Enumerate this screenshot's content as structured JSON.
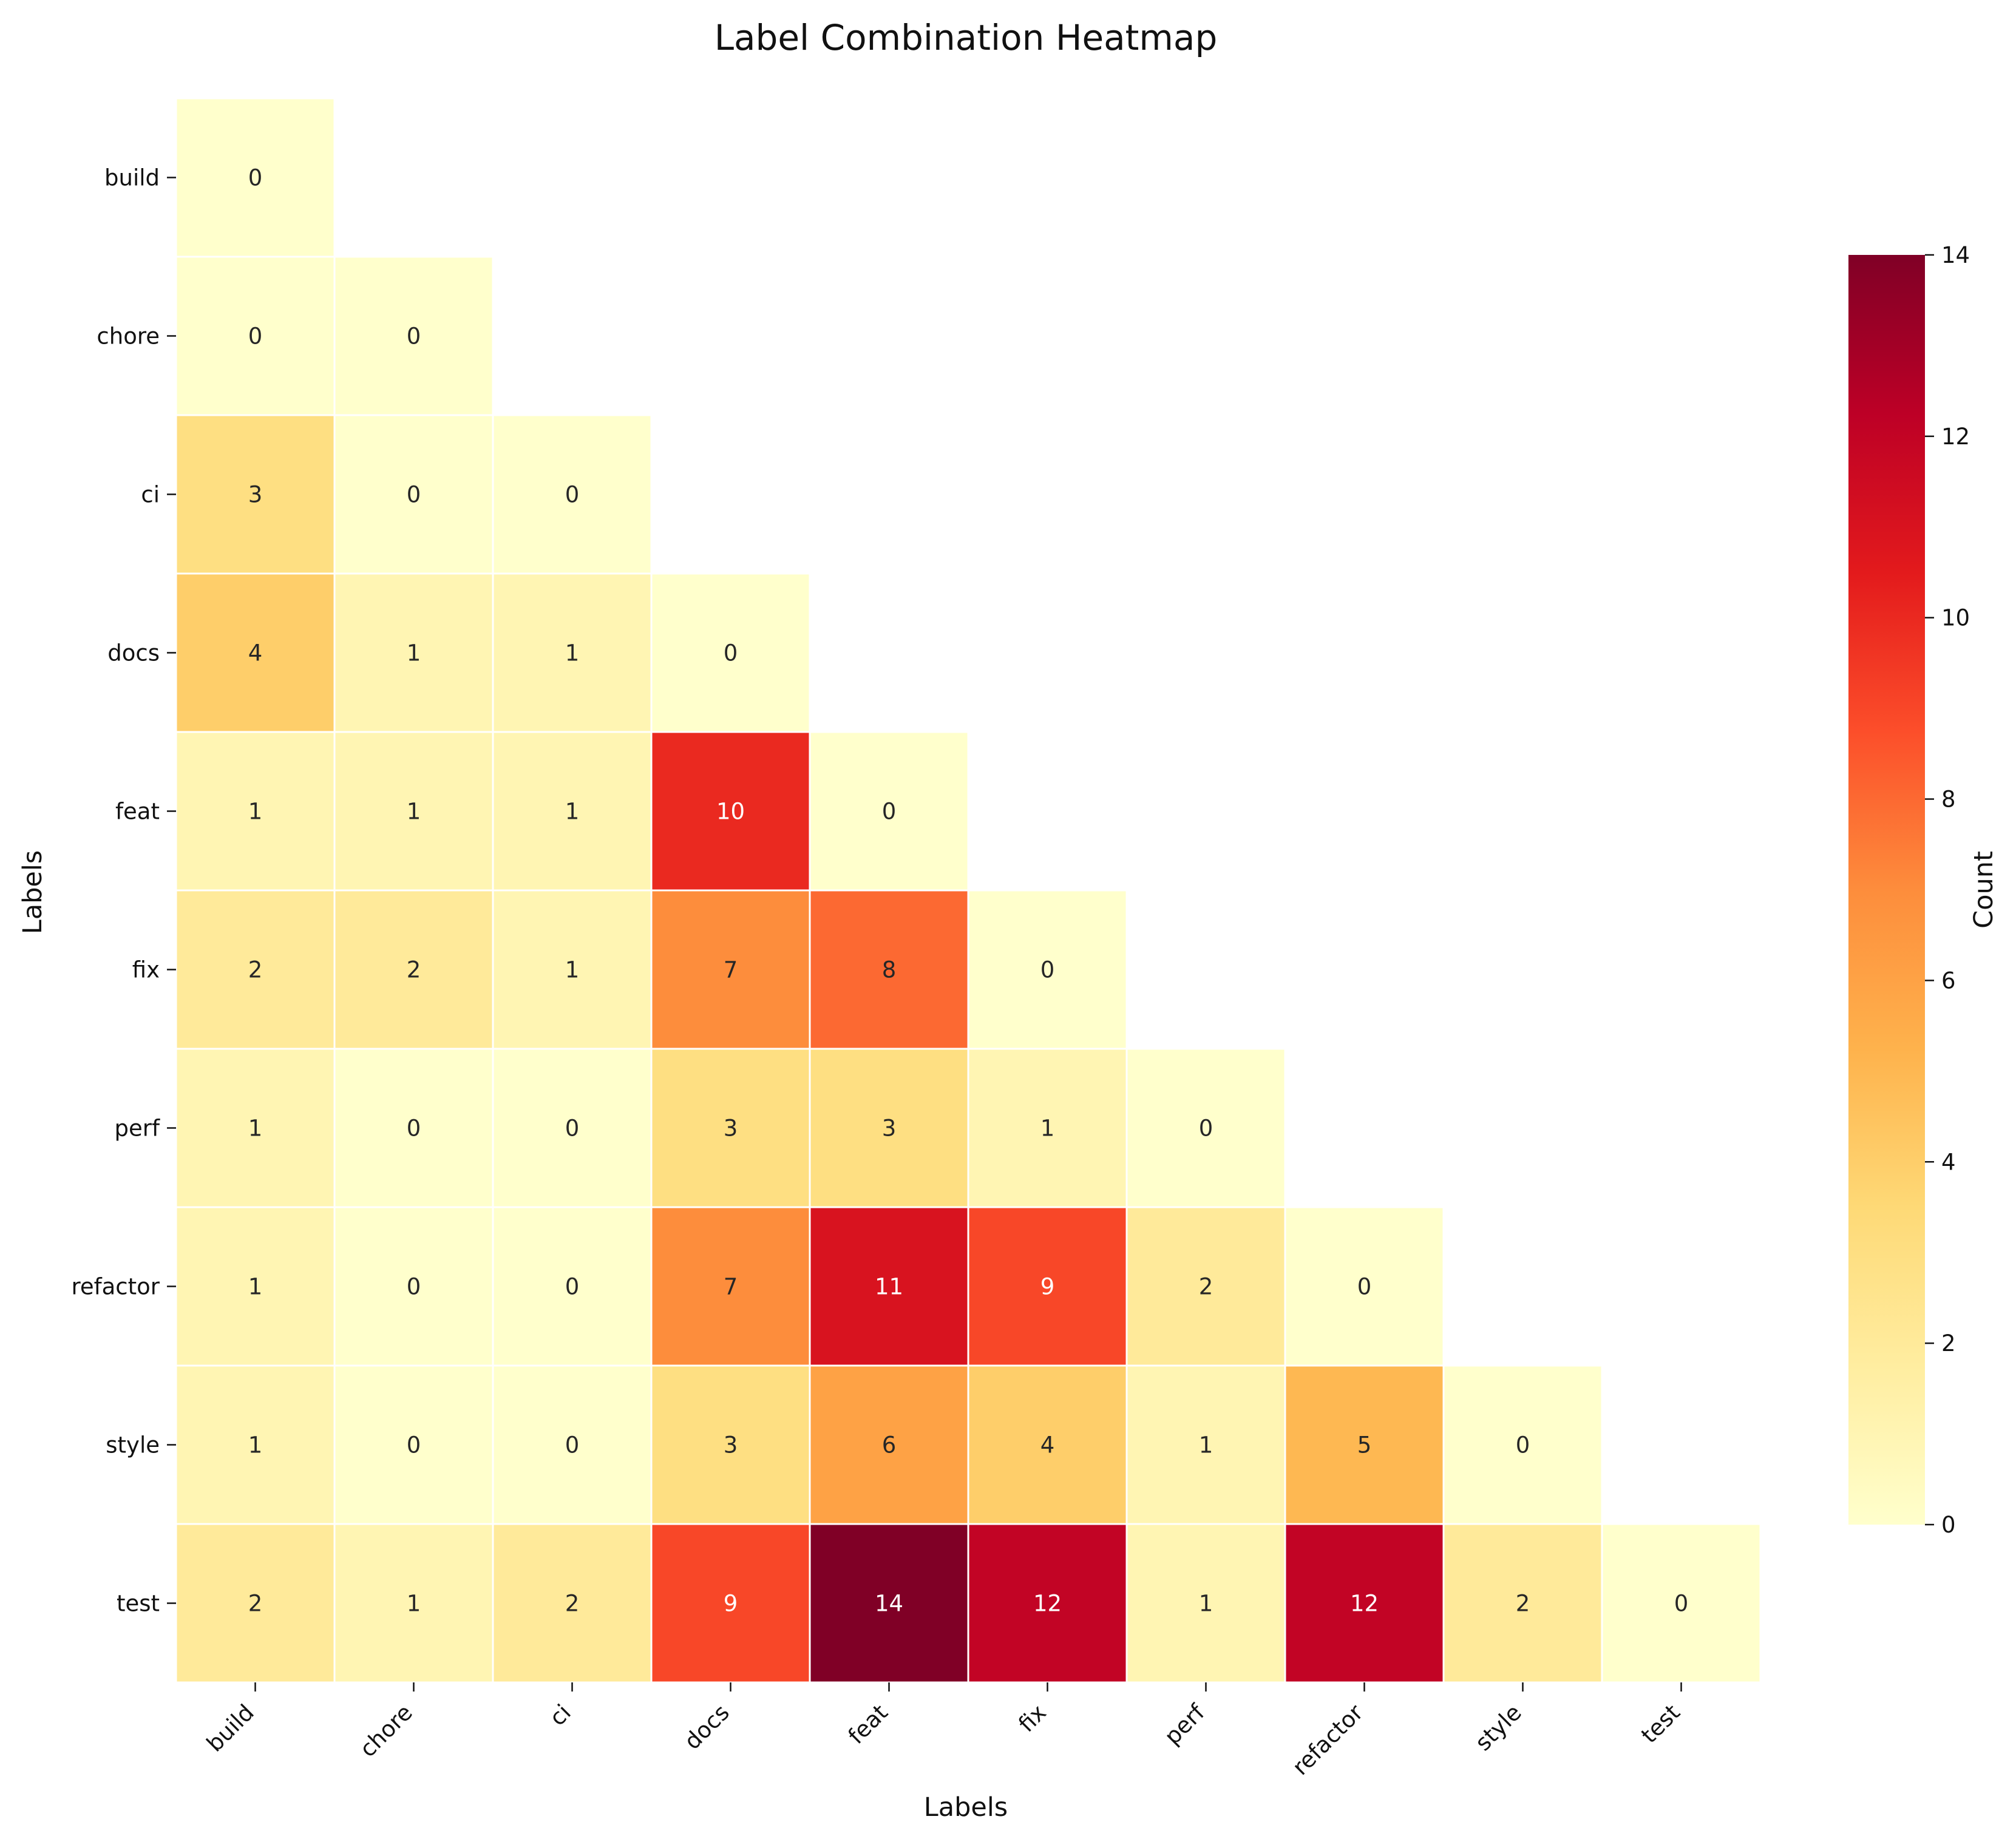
{
  "chart_data": {
    "type": "heatmap",
    "title": "Label Combination Heatmap",
    "xlabel": "Labels",
    "ylabel": "Labels",
    "x_categories": [
      "build",
      "chore",
      "ci",
      "docs",
      "feat",
      "fix",
      "perf",
      "refactor",
      "style",
      "test"
    ],
    "y_categories": [
      "build",
      "chore",
      "ci",
      "docs",
      "feat",
      "fix",
      "perf",
      "refactor",
      "style",
      "test"
    ],
    "matrix": [
      [
        0
      ],
      [
        0,
        0
      ],
      [
        3,
        0,
        0
      ],
      [
        4,
        1,
        1,
        0
      ],
      [
        1,
        1,
        1,
        10,
        0
      ],
      [
        2,
        2,
        1,
        7,
        8,
        0
      ],
      [
        1,
        0,
        0,
        3,
        3,
        1,
        0
      ],
      [
        1,
        0,
        0,
        7,
        11,
        9,
        2,
        0
      ],
      [
        1,
        0,
        0,
        3,
        6,
        4,
        1,
        5,
        0
      ],
      [
        2,
        1,
        2,
        9,
        14,
        12,
        1,
        12,
        2,
        0
      ]
    ],
    "mask": "upper-triangle",
    "colormap": "YlOrRd",
    "colormap_stops": [
      "#ffffcc",
      "#ffeda0",
      "#fed976",
      "#feb24c",
      "#fd8d3c",
      "#fc4e2a",
      "#e31a1c",
      "#bd0026",
      "#800026"
    ],
    "value_range": [
      0,
      14
    ],
    "colorbar": {
      "label": "Count",
      "ticks": [
        "0",
        "2",
        "4",
        "6",
        "8",
        "10",
        "12",
        "14"
      ]
    },
    "annotations": true,
    "grid": false
  }
}
